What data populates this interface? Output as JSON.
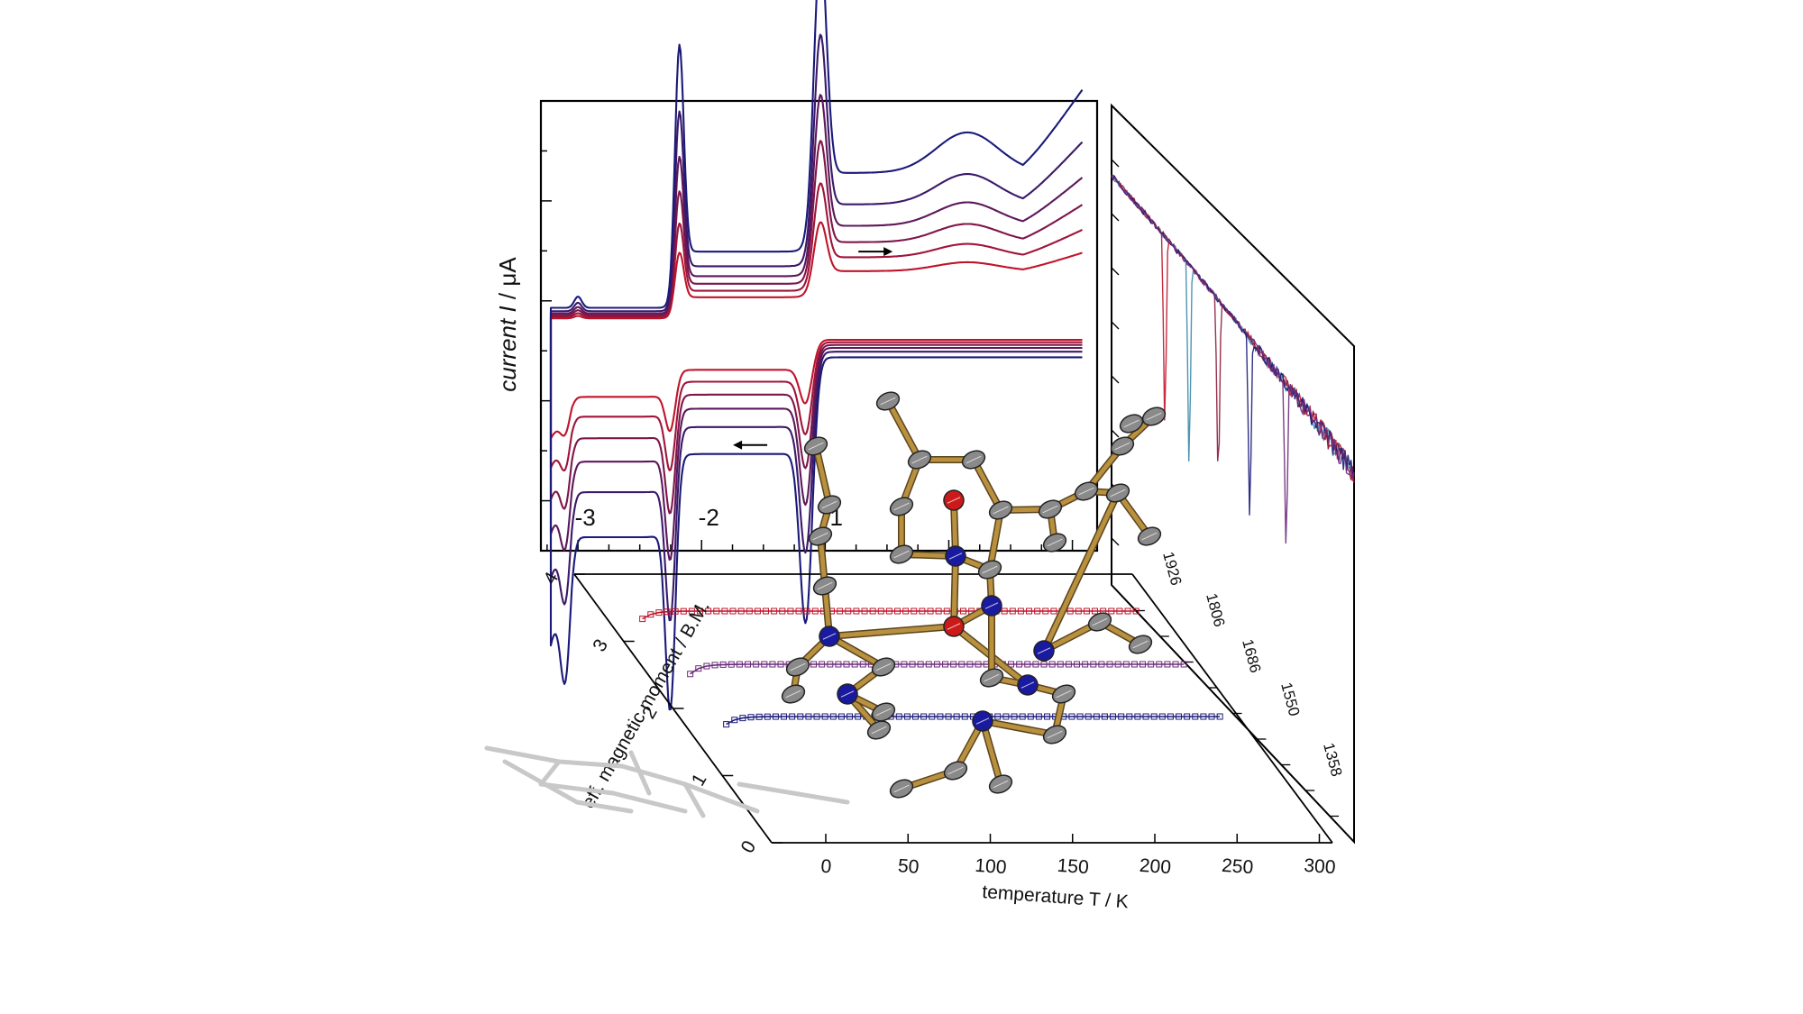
{
  "colors": {
    "axis": "#000000",
    "curve_red": "#c0142a",
    "curve_dark_red": "#8b1a3a",
    "curve_purple": "#6b2a7a",
    "curve_blue": "#1a1a7a",
    "ir_cyan": "#3a8aa8",
    "bond": "#b8903e",
    "atom_c": "#8a8a8a",
    "atom_n": "#1a1aa0",
    "atom_o": "#cc1a1a",
    "shadow": "#c8c8c8"
  },
  "chart_data": [
    {
      "type": "line",
      "panel": "cyclic-voltammogram",
      "title": "",
      "xlabel": "",
      "ylabel_prefix": "current ",
      "ylabel_symbol": "I",
      "ylabel_suffix": " / μA",
      "xlim": [
        -3.3,
        1.2
      ],
      "ylim": [
        -1,
        1
      ],
      "xticks": [
        -3,
        -2,
        -1
      ],
      "xtick_labels": [
        "-3",
        "-2",
        "-1"
      ],
      "arrows": [
        {
          "direction": "right",
          "x": -0.6,
          "y": 0.33
        },
        {
          "direction": "left",
          "x": -1.6,
          "y": -0.53
        }
      ],
      "series": [
        {
          "scan": 1,
          "amplitude": 0.22
        },
        {
          "scan": 2,
          "amplitude": 0.33
        },
        {
          "scan": 3,
          "amplitude": 0.45
        },
        {
          "scan": 4,
          "amplitude": 0.58
        },
        {
          "scan": 5,
          "amplitude": 0.75
        },
        {
          "scan": 6,
          "amplitude": 1.0
        }
      ]
    },
    {
      "type": "scatter",
      "panel": "magnetic-moment",
      "title": "",
      "xlabel": "temperature T / K",
      "ylabel": "eff. magnetic moment / B.M.",
      "xlim": [
        0,
        300
      ],
      "ylim": [
        0,
        4
      ],
      "xticks": [
        0,
        50,
        100,
        150,
        200,
        250,
        300
      ],
      "yticks": [
        0,
        1,
        2,
        3,
        4
      ],
      "series": [
        {
          "plateau": 4.0,
          "start": 3.6,
          "depth": 0
        },
        {
          "plateau": 3.0,
          "start": 2.5,
          "depth": 1
        },
        {
          "plateau": 2.0,
          "start": 1.6,
          "depth": 2
        }
      ]
    },
    {
      "type": "line",
      "panel": "ir-spectrum",
      "title": "",
      "band_labels": [
        "1926",
        "1806",
        "1686",
        "1550",
        "1358"
      ]
    }
  ]
}
